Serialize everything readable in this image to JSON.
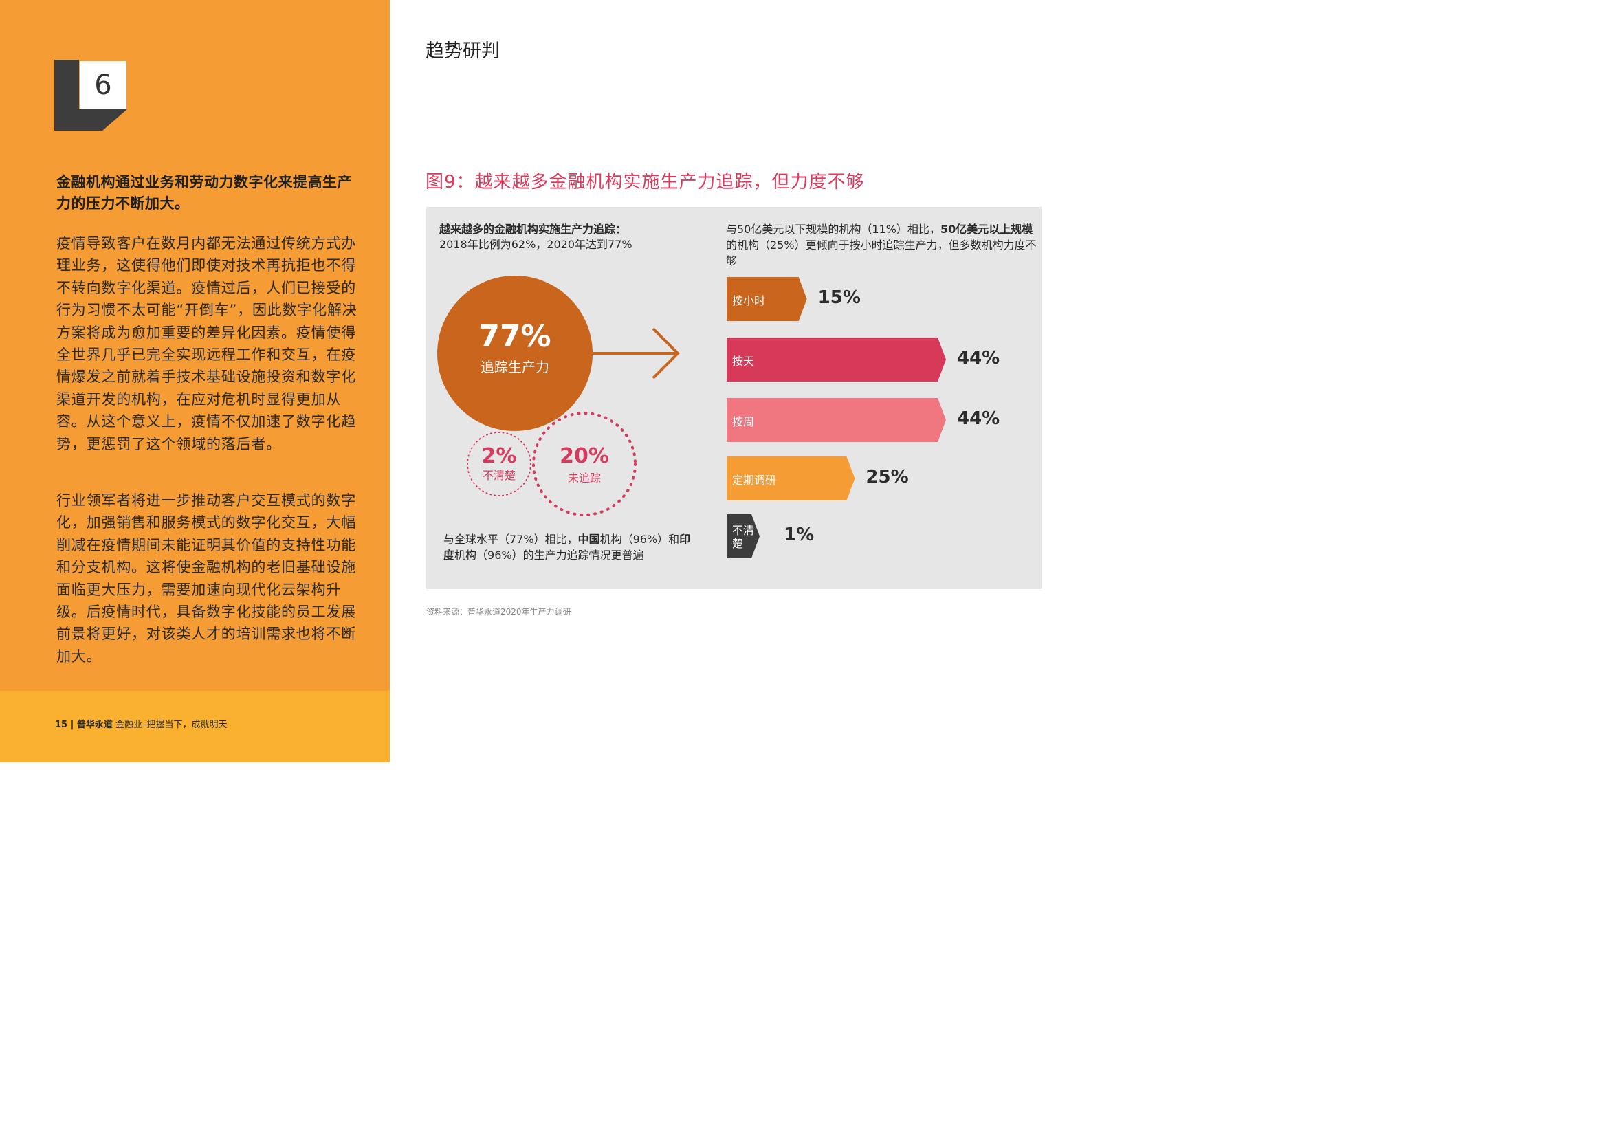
{
  "page": {
    "chapter_number": "6",
    "section_title": "趋势研判",
    "lead": "金融机构通过业务和劳动力数字化来提高生产力的压力不断加大。",
    "para1": "疫情导致客户在数月内都无法通过传统方式办理业务，这使得他们即使对技术再抗拒也不得不转向数字化渠道。疫情过后，人们已接受的行为习惯不太可能“开倒车”，因此数字化解决方案将成为愈加重要的差异化因素。疫情使得全世界几乎已完全实现远程工作和交互，在疫情爆发之前就着手技术基础设施投资和数字化渠道开发的机构，在应对危机时显得更加从容。从这个意义上，疫情不仅加速了数字化趋势，更惩罚了这个领域的落后者。",
    "para2": "行业领军者将进一步推动客户交互模式的数字化，加强销售和服务模式的数字化交互，大幅削减在疫情期间未能证明其价值的支持性功能和分支机构。这将使金融机构的老旧基础设施面临更大压力，需要加速向现代化云架构升级。后疫情时代，具备数字化技能的员工发展前景将更好，对该类人才的培训需求也将不断加大。",
    "footer_page": "15",
    "footer_sep": " | ",
    "footer_brand": "普华永道",
    "footer_text": " 金融业–把握当下，成就明天"
  },
  "figure": {
    "title": "图9：越来越多金融机构实施生产力追踪，但力度不够",
    "left_heading": "越来越多的金融机构实施生产力追踪：",
    "left_sub": "2018年比例为62%，2020年达到77%",
    "right_text_plain1": "与50亿美元以下规模的机构（11%）相比，",
    "right_text_bold": "50亿美元以上规模",
    "right_text_plain2": "的机构（25%）更倾向于按小时追踪生产力，但多数机构力度不够",
    "bottom_plain1": "与全球水平（77%）相比，",
    "bottom_bold1": "中国",
    "bottom_plain2": "机构（96%）和",
    "bottom_bold2": "印度",
    "bottom_plain3": "机构（96%）的生产力追踪情况更普遍",
    "source": "资料来源：普华永道2020年生产力调研"
  },
  "colors": {
    "orange_panel": "#f59c34",
    "tracking_circle": "#c9651c",
    "hourly_bar": "#c9651c",
    "daily_bar": "#d73a58",
    "weekly_bar": "#f07680",
    "periodic_bar": "#f59c34",
    "unclear_bar": "#3d3d3d",
    "accent_pink": "#d63a5c"
  },
  "chart_data": [
    {
      "type": "pie",
      "labels": [
        "追踪生产力",
        "未追踪",
        "不清楚"
      ],
      "values": [
        77,
        20,
        2
      ],
      "display": [
        "77%",
        "20%",
        "2%"
      ]
    },
    {
      "type": "bar",
      "orientation": "horizontal",
      "categories": [
        "按小时",
        "按天",
        "按周",
        "定期调研",
        "不清楚"
      ],
      "values": [
        15,
        44,
        44,
        25,
        1
      ],
      "display": [
        "15%",
        "44%",
        "44%",
        "25%",
        "1%"
      ]
    }
  ]
}
